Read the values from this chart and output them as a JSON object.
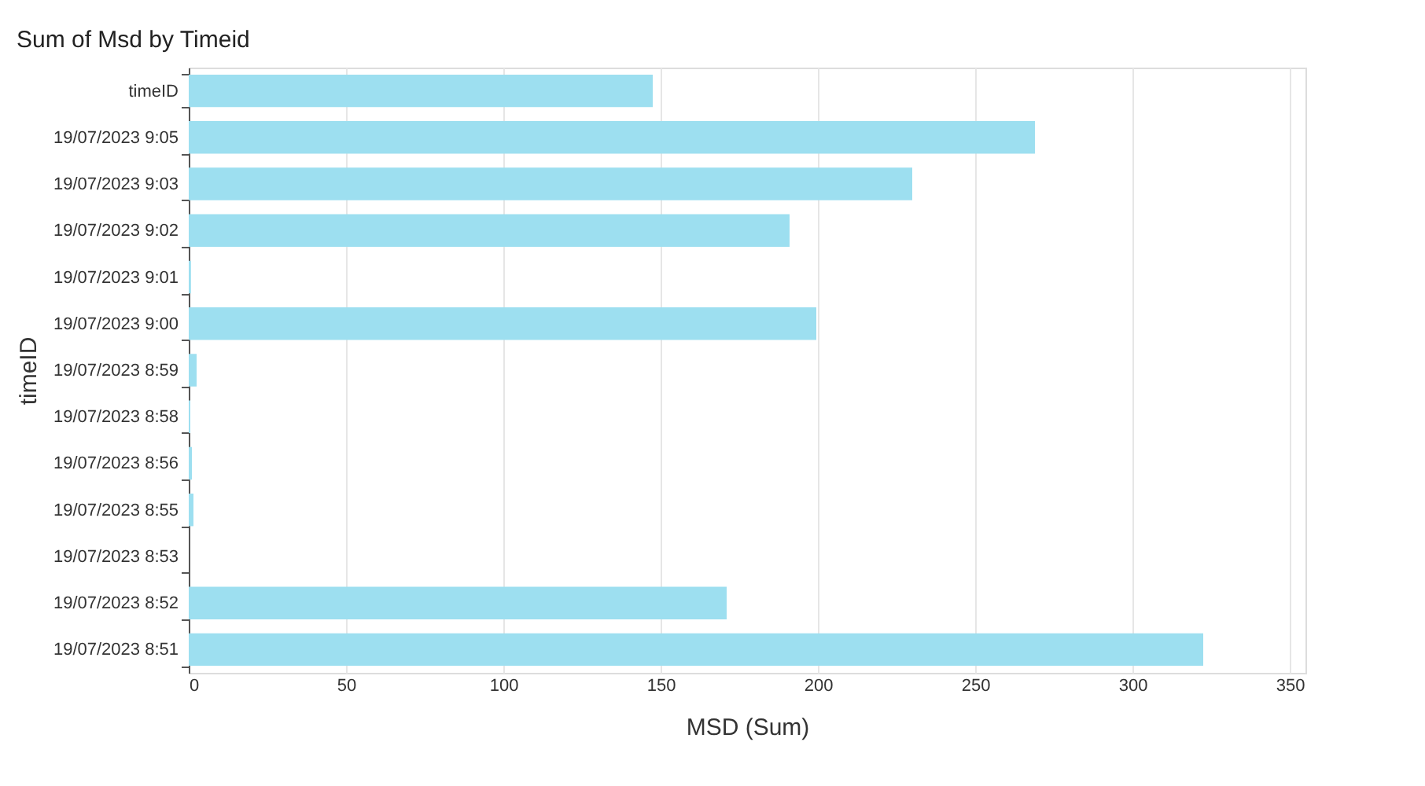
{
  "chart_data": {
    "type": "bar",
    "orientation": "horizontal",
    "title": "Sum of Msd by Timeid",
    "xlabel": "MSD (Sum)",
    "ylabel": "timeID",
    "categories": [
      "timeID",
      "19/07/2023 9:05",
      "19/07/2023 9:03",
      "19/07/2023 9:02",
      "19/07/2023 9:01",
      "19/07/2023 9:00",
      "19/07/2023 8:59",
      "19/07/2023 8:58",
      "19/07/2023 8:56",
      "19/07/2023 8:55",
      "19/07/2023 8:53",
      "19/07/2023 8:52",
      "19/07/2023 8:51"
    ],
    "values": [
      147.5,
      269,
      230,
      191,
      0.7,
      199.5,
      2.5,
      0.5,
      1,
      1.5,
      0,
      171,
      322.5
    ],
    "color": "#9ddff0",
    "xlim": [
      0,
      355
    ],
    "xticks": [
      0,
      50,
      100,
      150,
      200,
      250,
      300,
      350
    ],
    "grid": "x"
  }
}
